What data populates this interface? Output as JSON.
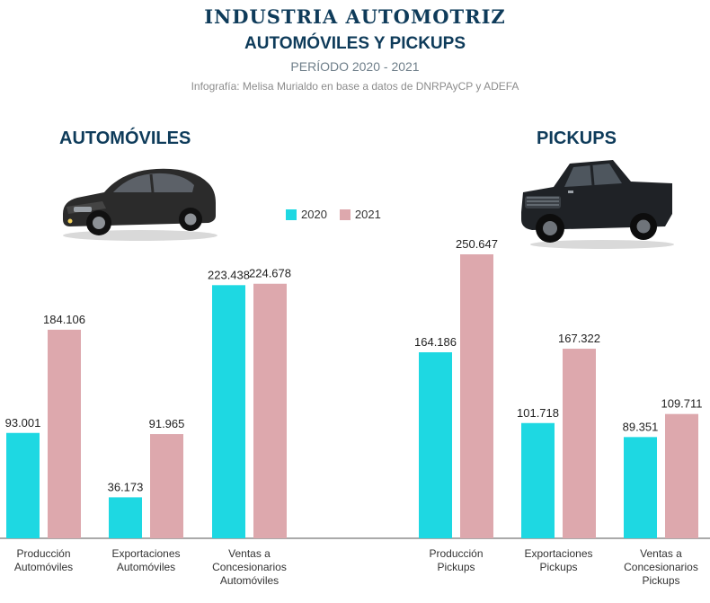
{
  "header": {
    "title": "INDUSTRIA AUTOMOTRIZ",
    "subtitle": "AUTOMÓVILES Y PICKUPS",
    "period": "PERÍODO 2020 - 2021",
    "credit": "Infografía: Melisa Murialdo en base a datos de DNRPAyCP y ADEFA"
  },
  "sections": {
    "cars": "AUTOMÓVILES",
    "pickups": "PICKUPS"
  },
  "icons": [
    "sedan-car-icon",
    "pickup-truck-icon"
  ],
  "colors": {
    "2020": "#1ed8e2",
    "2021": "#dda8ad",
    "title": "#0e3b5a"
  },
  "chart_data": {
    "type": "bar",
    "legend_position": "top-center",
    "grid": false,
    "categories": [
      [
        "Producción",
        "Automóviles"
      ],
      [
        "Exportaciones",
        "Automóviles"
      ],
      [
        "Ventas a",
        "Concesionarios",
        "Automóviles"
      ],
      [
        "Producción",
        "Pickups"
      ],
      [
        "Exportaciones",
        "Pickups"
      ],
      [
        "Ventas a",
        "Concesionarios",
        "Pickups"
      ]
    ],
    "series": [
      {
        "name": "2020",
        "values": [
          93001,
          36173,
          223438,
          164186,
          101718,
          89351
        ],
        "labels": [
          "93.001",
          "36.173",
          "223.438",
          "164.186",
          "101.718",
          "89.351"
        ]
      },
      {
        "name": "2021",
        "values": [
          184106,
          91965,
          224678,
          250647,
          167322,
          109711
        ],
        "labels": [
          "184.106",
          "91.965",
          "224.678",
          "250.647",
          "167.322",
          "109.711"
        ]
      }
    ]
  }
}
